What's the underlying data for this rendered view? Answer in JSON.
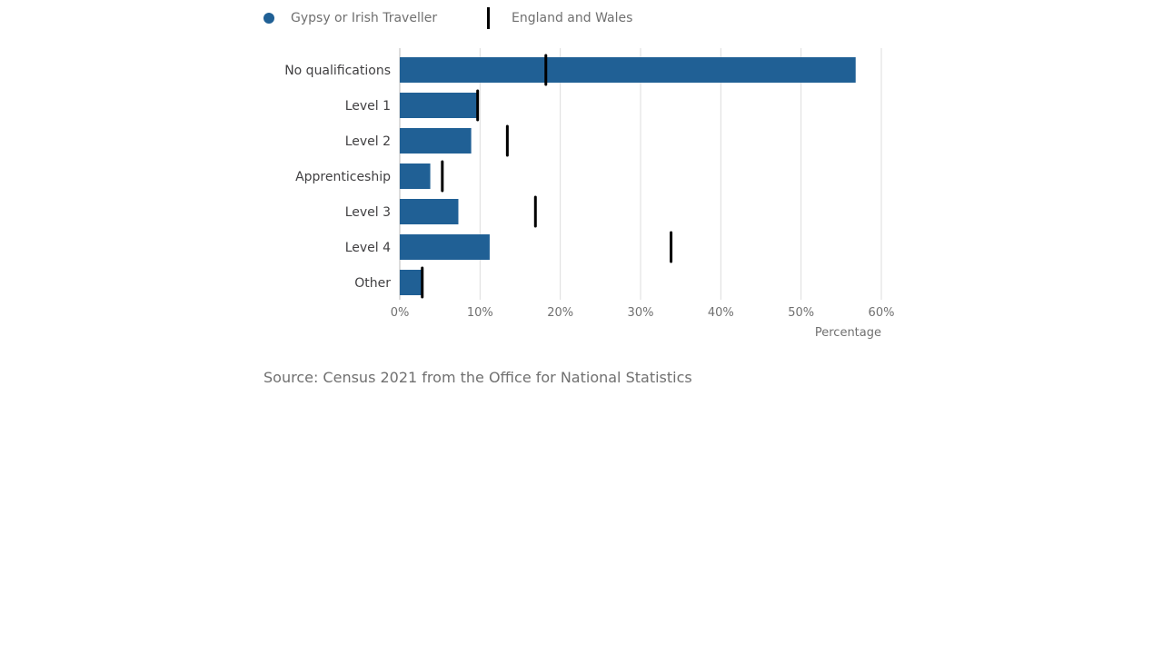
{
  "colors": {
    "primary": "#206095",
    "marker": "#000000",
    "grid": "#dddddd",
    "axis_text": "#707070",
    "label_text": "#414042"
  },
  "legend": {
    "series_label": "Gypsy or Irish Traveller",
    "marker_label": "England and Wales"
  },
  "chart_data": {
    "type": "bar",
    "orientation": "horizontal",
    "categories": [
      "No qualifications",
      "Level 1",
      "Level 2",
      "Apprenticeship",
      "Level 3",
      "Level 4",
      "Other"
    ],
    "series": [
      {
        "name": "Gypsy or Irish Traveller",
        "values": [
          56.8,
          9.6,
          8.9,
          3.8,
          7.3,
          11.2,
          2.7
        ]
      },
      {
        "name": "England and Wales",
        "values": [
          18.2,
          9.7,
          13.4,
          5.3,
          16.9,
          33.8,
          2.8
        ],
        "style": "marker"
      }
    ],
    "xlim": [
      0,
      60
    ],
    "ticks": [
      0,
      10,
      20,
      30,
      40,
      50,
      60
    ],
    "tick_labels": [
      "0%",
      "10%",
      "20%",
      "30%",
      "40%",
      "50%",
      "60%"
    ],
    "xlabel": "Percentage",
    "grid": true
  },
  "source": "Source: Census 2021 from the Office for National Statistics"
}
